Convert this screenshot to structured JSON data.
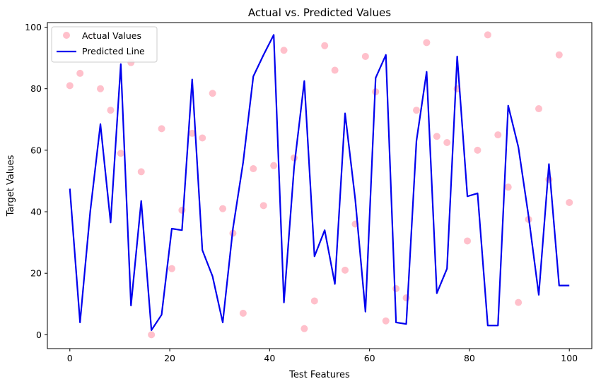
{
  "chart_data": {
    "type": "scatter",
    "title": "Actual vs. Predicted Values",
    "xlabel": "Test Features",
    "ylabel": "Target Values",
    "xlim": [
      -4.5,
      104.5
    ],
    "ylim": [
      -4.5,
      101.5
    ],
    "xticks": [
      0,
      20,
      40,
      60,
      80,
      100
    ],
    "yticks": [
      0,
      20,
      40,
      60,
      80,
      100
    ],
    "grid": false,
    "legend_position": "top-left",
    "x": [
      0,
      2.04,
      4.08,
      6.12,
      8.16,
      10.2,
      12.24,
      14.29,
      16.33,
      18.37,
      20.41,
      22.45,
      24.49,
      26.53,
      28.57,
      30.61,
      32.65,
      34.69,
      36.73,
      38.78,
      40.82,
      42.86,
      44.9,
      46.94,
      48.98,
      51.02,
      53.06,
      55.1,
      57.14,
      59.18,
      61.22,
      63.27,
      65.31,
      67.35,
      69.39,
      71.43,
      73.47,
      75.51,
      77.55,
      79.59,
      81.63,
      83.67,
      85.71,
      87.76,
      89.8,
      91.84,
      93.88,
      95.92,
      97.96,
      100
    ],
    "series": [
      {
        "name": "Actual Values",
        "kind": "scatter",
        "color": "#ffc0cb",
        "values": [
          81,
          85,
          97,
          80,
          73,
          59,
          88.5,
          53,
          0,
          67,
          21.5,
          40.5,
          65.5,
          64,
          78.5,
          41,
          33,
          7,
          54,
          42,
          55,
          92.5,
          57.5,
          2,
          11,
          94,
          86,
          21,
          36,
          90.5,
          79,
          4.5,
          15,
          12,
          73,
          95,
          64.5,
          62.5,
          80,
          30.5,
          60,
          97.5,
          65,
          48,
          10.5,
          37.5,
          73.5,
          50.5,
          91,
          43
        ]
      },
      {
        "name": "Predicted Line",
        "kind": "line",
        "color": "#0000ee",
        "values": [
          47.5,
          4,
          40,
          68.5,
          36.5,
          88,
          9.5,
          43.5,
          1.5,
          6.5,
          34.5,
          34,
          83,
          27.5,
          19,
          4,
          34.5,
          56,
          84,
          91,
          97.5,
          10.5,
          54.5,
          82.5,
          25.5,
          34,
          16.5,
          72,
          44,
          7.5,
          83.5,
          91,
          4,
          3.5,
          63,
          85.5,
          13.5,
          21.5,
          90.5,
          45,
          46,
          3,
          3,
          74.5,
          61,
          38.5,
          13,
          55.5,
          16,
          16
        ]
      }
    ]
  }
}
